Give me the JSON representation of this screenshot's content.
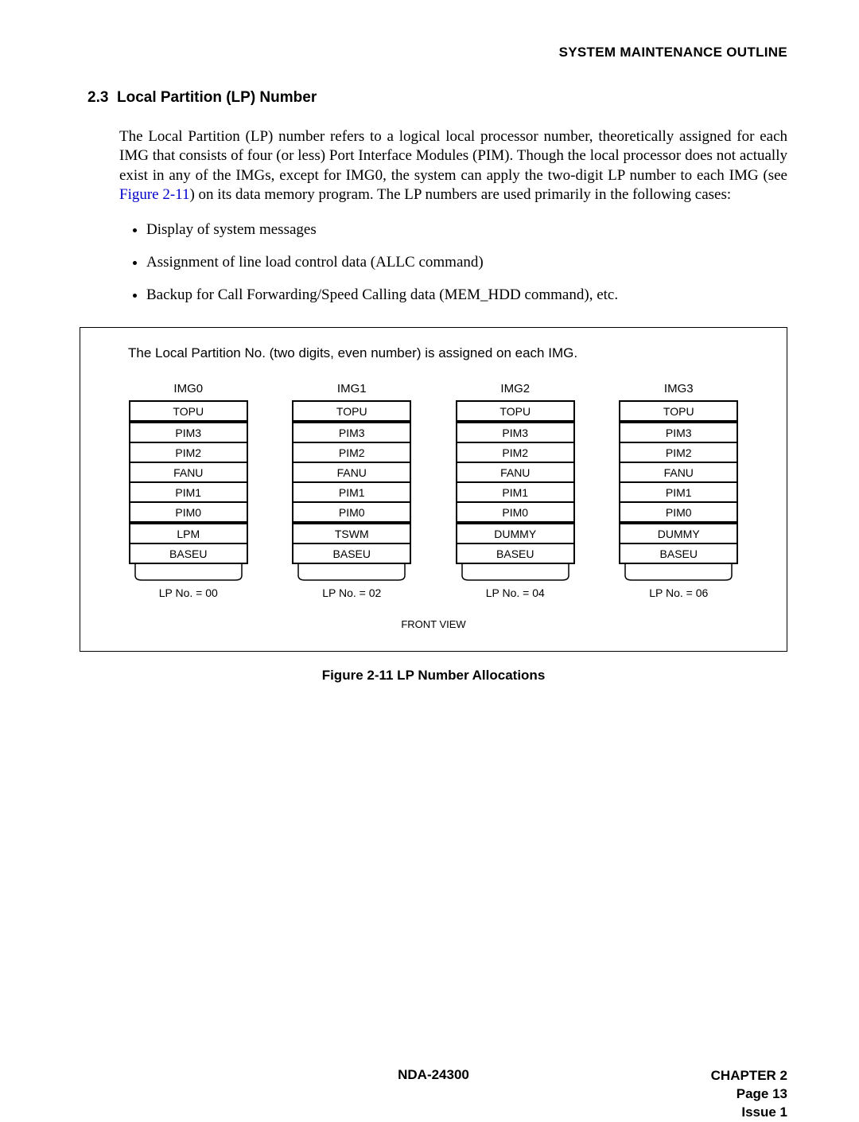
{
  "header": {
    "title": "SYSTEM MAINTENANCE OUTLINE"
  },
  "section": {
    "number": "2.3",
    "title": "Local Partition (LP) Number"
  },
  "paragraph": {
    "pre": "The Local Partition (LP) number refers to a logical local processor number, theoretically assigned for each IMG that consists of four (or less) Port Interface Modules (PIM). Though the local processor does not actually exist in any of the IMGs, except for IMG0, the system can apply the two-digit LP number to each IMG (see ",
    "link": "Figure 2-11",
    "post": ") on its data memory program. The LP numbers are used primarily in the following cases:"
  },
  "bullets": [
    "Display of system messages",
    "Assignment of line load control data (ALLC command)",
    "Backup for Call Forwarding/Speed Calling data (MEM_HDD command), etc."
  ],
  "figure": {
    "note": "The Local Partition No. (two digits, even number) is assigned on each IMG.",
    "front_view": "FRONT VIEW",
    "caption": "Figure 2-11   LP Number Allocations",
    "stacks": [
      {
        "title": "IMG0",
        "cells": [
          "TOPU",
          "PIM3",
          "PIM2",
          "FANU",
          "PIM1",
          "PIM0",
          "LPM",
          "BASEU"
        ],
        "lp": "LP No. = 00"
      },
      {
        "title": "IMG1",
        "cells": [
          "TOPU",
          "PIM3",
          "PIM2",
          "FANU",
          "PIM1",
          "PIM0",
          "TSWM",
          "BASEU"
        ],
        "lp": "LP No. = 02"
      },
      {
        "title": "IMG2",
        "cells": [
          "TOPU",
          "PIM3",
          "PIM2",
          "FANU",
          "PIM1",
          "PIM0",
          "DUMMY",
          "BASEU"
        ],
        "lp": "LP No. = 04"
      },
      {
        "title": "IMG3",
        "cells": [
          "TOPU",
          "PIM3",
          "PIM2",
          "FANU",
          "PIM1",
          "PIM0",
          "DUMMY",
          "BASEU"
        ],
        "lp": "LP No. = 06"
      }
    ],
    "cell_style": {
      "thick_top_indices": [
        0,
        1,
        6
      ],
      "thick_bottom_indices": [
        0,
        5,
        7
      ]
    }
  },
  "footer": {
    "center": "NDA-24300",
    "chapter": "CHAPTER 2",
    "page": "Page 13",
    "issue": "Issue 1"
  }
}
